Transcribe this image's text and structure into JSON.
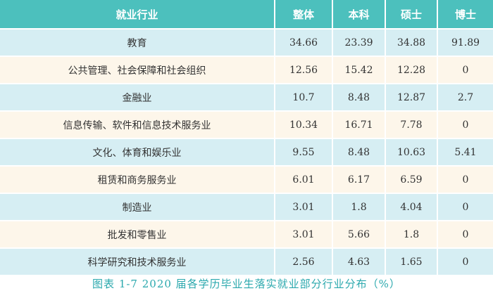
{
  "table": {
    "headers": [
      "就业行业",
      "整体",
      "本科",
      "硕士",
      "博士"
    ],
    "rows": [
      {
        "industry": "教育",
        "overall": "34.66",
        "bachelor": "23.39",
        "master": "34.88",
        "doctor": "91.89"
      },
      {
        "industry": "公共管理、社会保障和社会组织",
        "overall": "12.56",
        "bachelor": "15.42",
        "master": "12.28",
        "doctor": "0"
      },
      {
        "industry": "金融业",
        "overall": "10.7",
        "bachelor": "8.48",
        "master": "12.87",
        "doctor": "2.7"
      },
      {
        "industry": "信息传输、软件和信息技术服务业",
        "overall": "10.34",
        "bachelor": "16.71",
        "master": "7.78",
        "doctor": "0"
      },
      {
        "industry": "文化、体育和娱乐业",
        "overall": "9.55",
        "bachelor": "8.48",
        "master": "10.63",
        "doctor": "5.41"
      },
      {
        "industry": "租赁和商务服务业",
        "overall": "6.01",
        "bachelor": "6.17",
        "master": "6.59",
        "doctor": "0"
      },
      {
        "industry": "制造业",
        "overall": "3.01",
        "bachelor": "1.8",
        "master": "4.04",
        "doctor": "0"
      },
      {
        "industry": "批发和零售业",
        "overall": "3.01",
        "bachelor": "5.66",
        "master": "1.8",
        "doctor": "0"
      },
      {
        "industry": "科学研究和技术服务业",
        "overall": "2.56",
        "bachelor": "4.63",
        "master": "1.65",
        "doctor": "0"
      }
    ]
  },
  "caption": "图表 1-7 2020 届各学历毕业生落实就业部分行业分布（%）",
  "colors": {
    "header_bg": "#4cc0bd",
    "row_odd_bg": "#d6eef3",
    "row_even_bg": "#fdf6ea",
    "caption_text": "#2aa8ad"
  }
}
